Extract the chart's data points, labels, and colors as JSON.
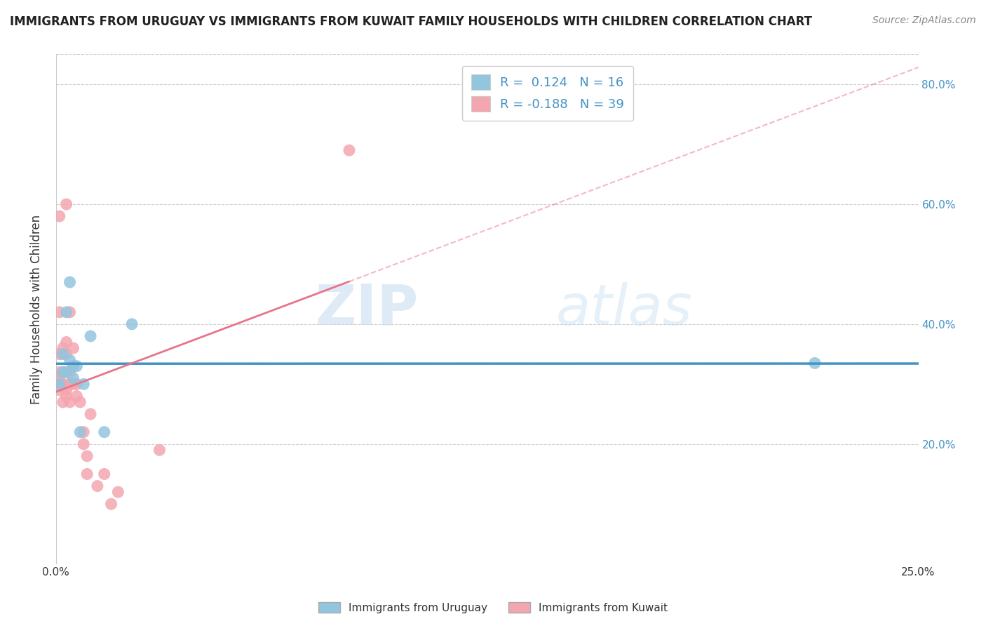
{
  "title": "IMMIGRANTS FROM URUGUAY VS IMMIGRANTS FROM KUWAIT FAMILY HOUSEHOLDS WITH CHILDREN CORRELATION CHART",
  "source": "Source: ZipAtlas.com",
  "ylabel": "Family Households with Children",
  "xlabel": "",
  "xlim": [
    0.0,
    0.25
  ],
  "ylim": [
    0.0,
    0.85
  ],
  "yticks": [
    0.0,
    0.2,
    0.4,
    0.6,
    0.8
  ],
  "ytick_labels": [
    "",
    "20.0%",
    "40.0%",
    "60.0%",
    "80.0%"
  ],
  "xticks": [
    0.0,
    0.05,
    0.1,
    0.15,
    0.2,
    0.25
  ],
  "xtick_labels": [
    "0.0%",
    "",
    "",
    "",
    "",
    "25.0%"
  ],
  "legend_r1": "R =  0.124   N = 16",
  "legend_r2": "R = -0.188   N = 39",
  "color_uruguay": "#92C5DE",
  "color_kuwait": "#F4A6B0",
  "line_color_uruguay": "#4393C3",
  "line_color_kuwait": "#E8748A",
  "background_color": "#FFFFFF",
  "uruguay_x": [
    0.001,
    0.002,
    0.002,
    0.003,
    0.003,
    0.004,
    0.004,
    0.005,
    0.005,
    0.006,
    0.007,
    0.008,
    0.01,
    0.014,
    0.022,
    0.22
  ],
  "uruguay_y": [
    0.3,
    0.32,
    0.35,
    0.32,
    0.42,
    0.34,
    0.47,
    0.31,
    0.33,
    0.33,
    0.22,
    0.3,
    0.38,
    0.22,
    0.4,
    0.335
  ],
  "kuwait_x": [
    0.0005,
    0.001,
    0.001,
    0.001,
    0.001,
    0.001,
    0.001,
    0.002,
    0.002,
    0.002,
    0.002,
    0.003,
    0.003,
    0.003,
    0.003,
    0.003,
    0.003,
    0.004,
    0.004,
    0.004,
    0.004,
    0.004,
    0.005,
    0.005,
    0.005,
    0.006,
    0.006,
    0.007,
    0.008,
    0.008,
    0.009,
    0.009,
    0.01,
    0.012,
    0.014,
    0.016,
    0.018,
    0.03,
    0.085
  ],
  "kuwait_y": [
    0.3,
    0.32,
    0.35,
    0.29,
    0.42,
    0.58,
    0.31,
    0.3,
    0.32,
    0.36,
    0.27,
    0.29,
    0.32,
    0.35,
    0.37,
    0.6,
    0.28,
    0.3,
    0.32,
    0.27,
    0.3,
    0.42,
    0.3,
    0.33,
    0.36,
    0.28,
    0.3,
    0.27,
    0.2,
    0.22,
    0.15,
    0.18,
    0.25,
    0.13,
    0.15,
    0.1,
    0.12,
    0.19,
    0.69
  ]
}
